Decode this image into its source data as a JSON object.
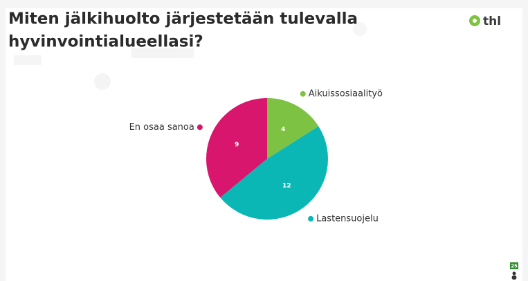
{
  "header": {
    "title_lines": [
      "Miten jälkihuolto järjestetään tulevalla",
      "hyvinvointialueellasi?"
    ],
    "logo": "thl"
  },
  "participant_count": 25,
  "chart_data": {
    "type": "pie",
    "categories": [
      "Aikuissosiaalityö",
      "Lastensuojelu",
      "En osaa sanoa"
    ],
    "values": [
      4,
      12,
      9
    ],
    "colors": [
      "#7dc242",
      "#0ab7b5",
      "#d8166e"
    ]
  }
}
